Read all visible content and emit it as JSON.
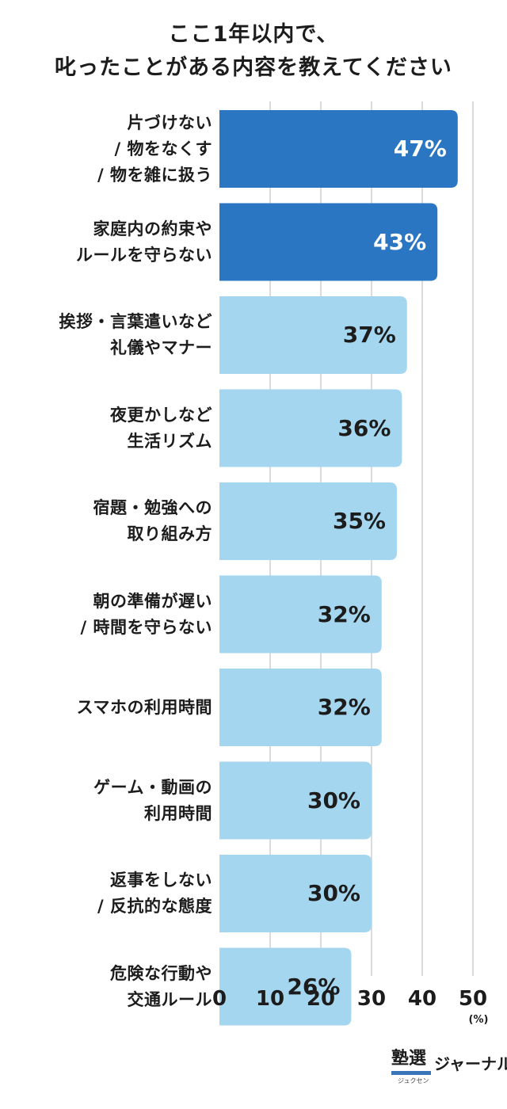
{
  "title_line1": "ここ1年以内で、",
  "title_line2": "叱ったことがある内容を教えてください",
  "unit_label": "(%)",
  "brand": {
    "logo": "塾選",
    "sub": "ジュクセン",
    "name": "ジャーナル"
  },
  "colors": {
    "highlight": "#2a76c3",
    "normal": "#a5d6ef",
    "value_on_highlight": "#ffffff",
    "value_on_normal": "#1c1c1c",
    "grid": "#cfcfcf"
  },
  "chart_data": {
    "type": "bar",
    "orientation": "horizontal",
    "title": "ここ1年以内で、叱ったことがある内容を教えてください",
    "categories": [
      [
        "片づけない",
        "/ 物をなくす",
        "/ 物を雑に扱う"
      ],
      [
        "家庭内の約束や",
        "ルールを守らない"
      ],
      [
        "挨拶・言葉遣いなど",
        "礼儀やマナー"
      ],
      [
        "夜更かしなど",
        "生活リズム"
      ],
      [
        "宿題・勉強への",
        "取り組み方"
      ],
      [
        "朝の準備が遅い",
        "/ 時間を守らない"
      ],
      [
        "スマホの利用時間"
      ],
      [
        "ゲーム・動画の",
        "利用時間"
      ],
      [
        "返事をしない",
        "/ 反抗的な態度"
      ],
      [
        "危険な行動や",
        "交通ルール"
      ]
    ],
    "values": [
      47,
      43,
      37,
      36,
      35,
      32,
      32,
      30,
      30,
      26
    ],
    "value_labels": [
      "47%",
      "43%",
      "37%",
      "36%",
      "35%",
      "32%",
      "32%",
      "30%",
      "30%",
      "26%"
    ],
    "highlight_count": 2,
    "xlim": [
      0,
      50
    ],
    "ticks": [
      0,
      10,
      20,
      30,
      40,
      50
    ],
    "tick_labels": [
      "0",
      "10",
      "20",
      "30",
      "40",
      "50"
    ],
    "xlabel": "(%)",
    "grid": true
  }
}
